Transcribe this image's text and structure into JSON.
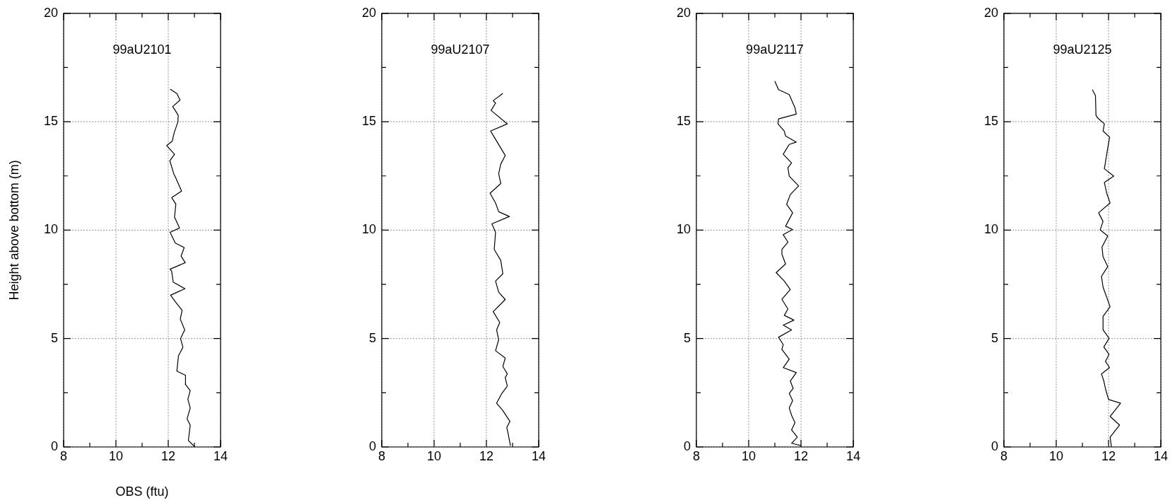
{
  "chart_data": [
    {
      "type": "line",
      "title": "99aU2101",
      "xlabel": "OBS (ftu)",
      "ylabel": "Height above bottom (m)",
      "xlim": [
        8,
        14
      ],
      "ylim": [
        0,
        20
      ],
      "xticks": [
        8,
        {
          "value": 9,
          "label": null
        },
        10,
        {
          "value": 11,
          "label": null
        },
        12,
        {
          "value": 13,
          "label": null
        },
        14
      ],
      "yticks": [
        0,
        {
          "value": 2.5,
          "label": null
        },
        5,
        {
          "value": 7.5,
          "label": null
        },
        10,
        {
          "value": 12.5,
          "label": null
        },
        15,
        {
          "value": 17.5,
          "label": null
        },
        20
      ],
      "grid": true,
      "series": [
        {
          "color": "#000000",
          "x": [
            13.02,
            12.77,
            12.84,
            12.72,
            12.84,
            12.75,
            12.84,
            12.65,
            12.66,
            12.33,
            12.39,
            12.56,
            12.47,
            12.63,
            12.46,
            12.53,
            12.27,
            12.09,
            12.64,
            12.19,
            12.13,
            12.07,
            12.65,
            12.49,
            12.61,
            12.27,
            12.07,
            12.43,
            12.24,
            12.29,
            12.13,
            12.51,
            12.29,
            12.21,
            12.06,
            12.24,
            11.94,
            12.15,
            12.23,
            12.37,
            12.38,
            12.17,
            12.45,
            12.33,
            12.07
          ],
          "values": [
            0,
            0.3,
            1.0,
            1.3,
            1.8,
            2.2,
            2.6,
            2.9,
            3.3,
            3.5,
            4.2,
            4.6,
            5.0,
            5.4,
            5.9,
            6.3,
            6.7,
            7.0,
            7.3,
            7.6,
            8.1,
            8.2,
            8.5,
            8.8,
            9.2,
            9.4,
            9.9,
            10.1,
            10.6,
            11.2,
            11.5,
            11.8,
            12.4,
            12.6,
            13.2,
            13.5,
            13.9,
            14.1,
            14.5,
            15.0,
            15.3,
            15.7,
            16.0,
            16.3,
            16.5
          ]
        }
      ]
    },
    {
      "type": "line",
      "title": "99aU2107",
      "xlim": [
        8,
        14
      ],
      "ylim": [
        0,
        20
      ],
      "xticks": [
        8,
        {
          "value": 9,
          "label": null
        },
        10,
        {
          "value": 11,
          "label": null
        },
        12,
        {
          "value": 13,
          "label": null
        },
        14
      ],
      "yticks": [
        0,
        {
          "value": 2.5,
          "label": null
        },
        5,
        {
          "value": 7.5,
          "label": null
        },
        10,
        {
          "value": 12.5,
          "label": null
        },
        15,
        {
          "value": 17.5,
          "label": null
        },
        20
      ],
      "grid": true,
      "series": [
        {
          "color": "#000000",
          "x": [
            12.92,
            12.84,
            12.78,
            12.9,
            12.62,
            12.39,
            12.59,
            12.8,
            12.72,
            12.8,
            12.63,
            12.72,
            12.35,
            12.47,
            12.39,
            12.51,
            12.26,
            12.72,
            12.47,
            12.35,
            12.63,
            12.55,
            12.3,
            12.35,
            12.21,
            12.88,
            12.47,
            12.35,
            12.14,
            12.55,
            12.47,
            12.55,
            12.72,
            12.3,
            12.16,
            12.8,
            12.18,
            12.35,
            12.26,
            12.63
          ],
          "values": [
            0.05,
            0.56,
            0.9,
            1.18,
            1.69,
            2.02,
            2.47,
            2.81,
            3.2,
            3.37,
            3.71,
            4.1,
            4.44,
            4.95,
            5.4,
            5.74,
            6.24,
            6.8,
            7.14,
            7.65,
            7.99,
            8.6,
            9.11,
            9.9,
            10.29,
            10.63,
            10.85,
            11.25,
            11.7,
            12.15,
            12.6,
            13.05,
            13.44,
            14.29,
            14.57,
            14.9,
            15.52,
            15.86,
            15.97,
            16.31
          ]
        }
      ]
    },
    {
      "type": "line",
      "title": "99aU2117",
      "xlim": [
        8,
        14
      ],
      "ylim": [
        0,
        20
      ],
      "xticks": [
        8,
        {
          "value": 9,
          "label": null
        },
        10,
        {
          "value": 11,
          "label": null
        },
        12,
        {
          "value": 13,
          "label": null
        },
        14
      ],
      "yticks": [
        0,
        {
          "value": 2.5,
          "label": null
        },
        5,
        {
          "value": 7.5,
          "label": null
        },
        10,
        {
          "value": 12.5,
          "label": null
        },
        15,
        {
          "value": 17.5,
          "label": null
        },
        20
      ],
      "grid": true,
      "series": [
        {
          "color": "#000000",
          "x": [
            12.0,
            11.64,
            11.86,
            11.64,
            11.77,
            11.64,
            11.55,
            11.68,
            11.55,
            11.7,
            11.59,
            11.82,
            11.32,
            11.55,
            11.27,
            11.32,
            11.14,
            11.64,
            11.32,
            11.73,
            11.36,
            11.5,
            11.27,
            11.59,
            11.36,
            11.05,
            11.41,
            11.27,
            11.27,
            11.5,
            11.32,
            11.68,
            11.41,
            11.68,
            11.45,
            11.59,
            11.91,
            11.55,
            11.5,
            11.64,
            11.32,
            11.55,
            11.82,
            11.41,
            11.36,
            11.12,
            11.14,
            11.82,
            11.77,
            11.55,
            11.14,
            11.0
          ],
          "values": [
            0.06,
            0.17,
            0.45,
            0.79,
            1.12,
            1.46,
            1.8,
            2.14,
            2.47,
            2.7,
            3.04,
            3.43,
            3.66,
            4.05,
            4.5,
            4.72,
            5.06,
            5.4,
            5.62,
            5.85,
            6.07,
            6.36,
            6.81,
            7.26,
            7.65,
            8.04,
            8.44,
            8.89,
            9.11,
            9.45,
            9.79,
            10.03,
            10.18,
            10.8,
            11.19,
            11.64,
            12.04,
            12.49,
            12.88,
            13.1,
            13.5,
            13.95,
            14.06,
            14.34,
            14.57,
            14.9,
            15.13,
            15.35,
            15.64,
            16.25,
            16.48,
            16.87
          ]
        }
      ]
    },
    {
      "type": "line",
      "title": "99aU2125",
      "xlim": [
        8,
        14
      ],
      "ylim": [
        0,
        20
      ],
      "xticks": [
        8,
        {
          "value": 9,
          "label": null
        },
        10,
        {
          "value": 11,
          "label": null
        },
        12,
        {
          "value": 13,
          "label": null
        },
        14
      ],
      "yticks": [
        0,
        {
          "value": 2.5,
          "label": null
        },
        5,
        {
          "value": 7.5,
          "label": null
        },
        10,
        {
          "value": 12.5,
          "label": null
        },
        15,
        {
          "value": 17.5,
          "label": null
        },
        20
      ],
      "grid": true,
      "series": [
        {
          "color": "#000000",
          "x": [
            12.11,
            12.06,
            12.42,
            12.06,
            12.46,
            12.0,
            11.88,
            11.82,
            11.73,
            12.04,
            11.88,
            12.02,
            11.82,
            12.02,
            11.79,
            11.79,
            12.06,
            11.79,
            11.73,
            11.97,
            11.79,
            11.75,
            11.97,
            11.68,
            11.79,
            11.62,
            12.06,
            11.93,
            11.84,
            12.2,
            11.84,
            12.04,
            11.79,
            11.84,
            11.57,
            11.52,
            11.5,
            11.38
          ],
          "values": [
            0,
            0.45,
            1.01,
            1.41,
            2.02,
            2.19,
            2.7,
            3.04,
            3.37,
            3.66,
            3.94,
            4.27,
            4.61,
            5.01,
            5.4,
            6.02,
            6.47,
            7.37,
            7.87,
            8.32,
            8.77,
            9.22,
            9.73,
            10.01,
            10.4,
            10.8,
            11.25,
            11.7,
            12.2,
            12.49,
            12.83,
            14.29,
            14.57,
            14.9,
            15.19,
            15.3,
            16.2,
            16.48
          ]
        }
      ]
    }
  ]
}
